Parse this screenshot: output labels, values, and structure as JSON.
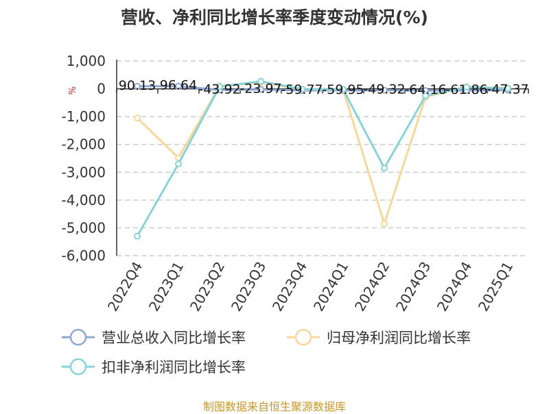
{
  "chart_data": {
    "type": "line",
    "title": "营收、净利同比增长率季度变动情况(%)",
    "unit_label": "%",
    "categories": [
      "2022Q4",
      "2023Q1",
      "2023Q2",
      "2023Q3",
      "2023Q4",
      "2024Q1",
      "2024Q2",
      "2024Q3",
      "2024Q4",
      "2025Q1"
    ],
    "ylim": [
      -6000,
      1000
    ],
    "yticks": [
      1000,
      0,
      -1000,
      -2000,
      -3000,
      -4000,
      -5000,
      -6000
    ],
    "ytick_labels": [
      "1,000",
      "0",
      "-1,000",
      "-2,000",
      "-3,000",
      "-4,000",
      "-5,000",
      "-6,000"
    ],
    "grid": "horizontal-dashed",
    "legend_position": "bottom",
    "series": [
      {
        "name": "营业总收入同比增长率",
        "color": "#8ea8d6",
        "values": [
          90.13,
          96.64,
          -43.92,
          -23.97,
          -59.77,
          -59.95,
          -49.32,
          -64.16,
          -61.86,
          -47.37
        ]
      },
      {
        "name": "归母净利润同比增长率",
        "color": "#f9d79b",
        "values": [
          -1050,
          -2480,
          100,
          220,
          -20,
          -30,
          -4850,
          -300,
          80,
          20
        ]
      },
      {
        "name": "扣非净利润同比增长率",
        "color": "#88d3d8",
        "values": [
          -5300,
          -2700,
          80,
          270,
          -10,
          -20,
          -2850,
          -250,
          60,
          15
        ]
      }
    ],
    "data_labels": [
      "90.13",
      "96.64",
      "-43.92",
      "-23.97",
      "-59.77",
      "-59.95",
      "-49.32",
      "-64.16",
      "-61.86",
      "-47.37"
    ],
    "data_label_series": 0
  },
  "footer": {
    "source": "制图数据来自恒生聚源数据库"
  }
}
